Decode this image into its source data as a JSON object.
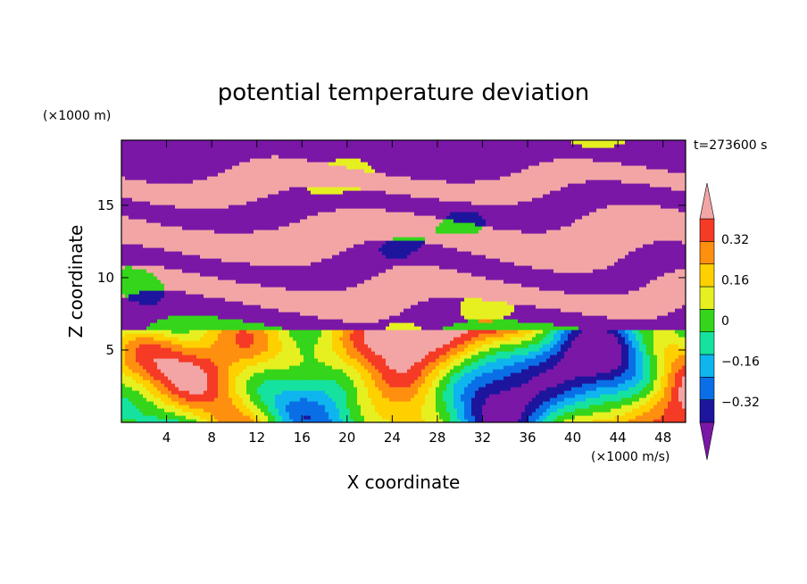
{
  "chart_data": {
    "type": "heatmap",
    "title": "potential temperature deviation",
    "xlabel": "X coordinate",
    "ylabel": "Z coordinate",
    "x_unit": "(×1000 m/s)",
    "y_unit": "(×1000 m)",
    "time_label": "t=273600 s",
    "xlim": [
      0,
      50
    ],
    "ylim": [
      0,
      19.5
    ],
    "x_ticks": [
      4,
      8,
      12,
      16,
      20,
      24,
      28,
      32,
      36,
      40,
      44,
      48
    ],
    "y_ticks": [
      5,
      10,
      15
    ],
    "colorbar": {
      "levels": [
        -0.4,
        -0.32,
        -0.24,
        -0.16,
        -0.08,
        0,
        0.08,
        0.16,
        0.24,
        0.32,
        0.4
      ],
      "labels": [
        "0.32",
        "0.16",
        "0",
        "−0.16",
        "−0.32"
      ],
      "label_values": [
        0.32,
        0.16,
        0,
        -0.16,
        -0.32
      ],
      "colors_low_to_high": [
        "#7a17a6",
        "#1d159d",
        "#0a6fe6",
        "#0fb5ef",
        "#16e2a0",
        "#34d51a",
        "#e6f021",
        "#ffd000",
        "#ff8f0f",
        "#f53a26",
        "#f3a5a5"
      ],
      "extend": "both"
    },
    "fields": {
      "description_free": true,
      "layers": [
        {
          "z_from": 17.5,
          "z_to": 19.5,
          "value": -0.4
        },
        {
          "z_from": 15.8,
          "z_to": 17.5,
          "value": 0.4
        },
        {
          "z_from": 14.0,
          "z_to": 15.8,
          "value": -0.4
        },
        {
          "z_from": 11.5,
          "z_to": 14.0,
          "value": 0.4
        },
        {
          "z_from": 9.8,
          "z_to": 11.5,
          "value": -0.4
        },
        {
          "z_from": 8.0,
          "z_to": 9.8,
          "value": 0.4
        },
        {
          "z_from": 6.5,
          "z_to": 8.0,
          "value": -0.4
        },
        {
          "z_from": 0,
          "z_to": 6.5,
          "value": 0.0
        }
      ]
    }
  }
}
